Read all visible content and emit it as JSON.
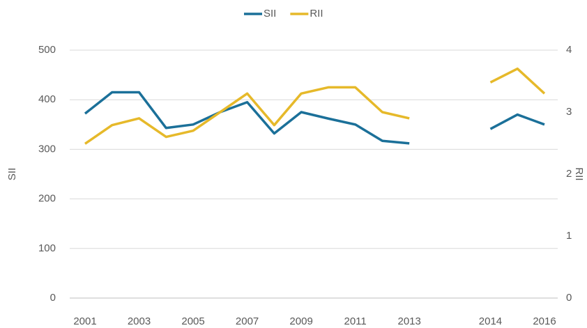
{
  "chart_data": {
    "type": "line",
    "categories": [
      "2001",
      null,
      "2003",
      null,
      "2005",
      null,
      "2007",
      null,
      "2009",
      null,
      "2011",
      null,
      "2013",
      null,
      null,
      "2014",
      null,
      "2016"
    ],
    "series": [
      {
        "name": "SII",
        "color": "#1b7099",
        "values": [
          372,
          415,
          415,
          343,
          350,
          375,
          395,
          332,
          375,
          362,
          350,
          317,
          312,
          null,
          null,
          341,
          370,
          350
        ]
      },
      {
        "name": "RII",
        "color": "#e6b92a",
        "axis": "y2",
        "values": [
          2.49,
          2.79,
          2.9,
          2.6,
          2.7,
          3.0,
          3.3,
          2.79,
          3.3,
          3.4,
          3.4,
          3.0,
          2.9,
          null,
          null,
          3.48,
          3.7,
          3.3
        ]
      }
    ],
    "ylabel": "SII",
    "y2label": "RII",
    "ylim": [
      0,
      500
    ],
    "yticks": [
      0,
      100,
      200,
      300,
      400,
      500
    ],
    "y2lim": [
      0,
      4
    ],
    "y2ticks": [
      0,
      1,
      2,
      3,
      4
    ],
    "grid": true,
    "legend": "top"
  }
}
